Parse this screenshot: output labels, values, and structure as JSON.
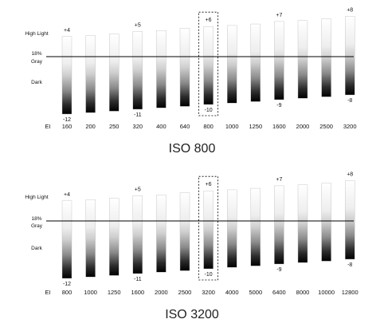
{
  "panels": [
    {
      "caption": "ISO 800",
      "row_labels": {
        "highlight": "High Light",
        "gray_line1": "18%",
        "gray_line2": "Gray",
        "dark": "Dark",
        "ei": "EI"
      },
      "ei_values": [
        "160",
        "200",
        "250",
        "320",
        "400",
        "640",
        "800",
        "1000",
        "1250",
        "1600",
        "2000",
        "2500",
        "3200"
      ],
      "highlight_stops": [
        4,
        4.2,
        4.5,
        5,
        5.2,
        5.6,
        6,
        6.2,
        6.5,
        7,
        7.2,
        7.5,
        8
      ],
      "shadow_stops": [
        -12,
        -11.7,
        -11.4,
        -11,
        -10.7,
        -10.4,
        -10,
        -9.7,
        -9.4,
        -9,
        -8.7,
        -8.4,
        -8
      ],
      "top_labels": {
        "0": "+4",
        "3": "+5",
        "6": "+6",
        "9": "+7",
        "12": "+8"
      },
      "bottom_labels": {
        "0": "-12",
        "3": "-11",
        "6": "-10",
        "9": "-9",
        "12": "-8"
      },
      "highlighted_index": 6
    },
    {
      "caption": "ISO 3200",
      "row_labels": {
        "highlight": "High Light",
        "gray_line1": "18%",
        "gray_line2": "Gray",
        "dark": "Dark",
        "ei": "EI"
      },
      "ei_values": [
        "800",
        "1000",
        "1250",
        "1600",
        "2000",
        "2500",
        "3200",
        "4000",
        "5000",
        "6400",
        "8000",
        "10000",
        "12800"
      ],
      "highlight_stops": [
        4,
        4.2,
        4.5,
        5,
        5.2,
        5.6,
        6,
        6.2,
        6.5,
        7,
        7.2,
        7.5,
        8
      ],
      "shadow_stops": [
        -12,
        -11.7,
        -11.4,
        -11,
        -10.7,
        -10.4,
        -10,
        -9.7,
        -9.4,
        -9,
        -8.7,
        -8.4,
        -8
      ],
      "top_labels": {
        "0": "+4",
        "3": "+5",
        "6": "+6",
        "9": "+7",
        "12": "+8"
      },
      "bottom_labels": {
        "0": "-12",
        "3": "-11",
        "6": "-10",
        "9": "-9",
        "12": "-8"
      },
      "highlighted_index": 6
    }
  ]
}
